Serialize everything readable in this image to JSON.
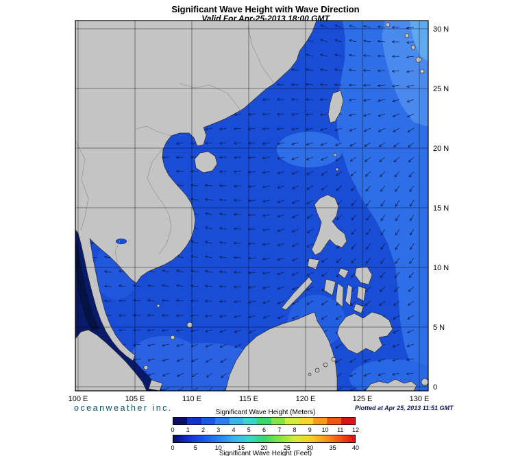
{
  "title": "Significant Wave Height with Wave Direction",
  "subtitle": "Valid For Apr-25-2013 18:00 GMT",
  "map": {
    "lon_labels": [
      "100 E",
      "105 E",
      "110 E",
      "115 E",
      "120 E",
      "125 E",
      "130 E"
    ],
    "lat_labels": [
      "30 N",
      "25 N",
      "20 N",
      "15 N",
      "10 N",
      "5 N",
      "0"
    ]
  },
  "footer": {
    "brand": "oceanweather inc.",
    "plotted": "Plotted at Apr 25, 2013 11:51 GMT"
  },
  "legend": {
    "meters_title": "Significant Wave Height (Meters)",
    "feet_title": "Significant Wave Height (Feet)",
    "meters_ticks": [
      "0",
      "1",
      "2",
      "3",
      "4",
      "5",
      "6",
      "7",
      "8",
      "9",
      "10",
      "11",
      "12"
    ],
    "feet_ticks": [
      "0",
      "5",
      "10",
      "15",
      "20",
      "25",
      "30",
      "35",
      "40"
    ],
    "colors": [
      "#0d0d62",
      "#1430cf",
      "#1b57e4",
      "#2e7fe9",
      "#3fb0e9",
      "#3fd2cb",
      "#41d36b",
      "#85e24b",
      "#d3ec3c",
      "#f7d52b",
      "#f89c1d",
      "#f1541a",
      "#d81414"
    ]
  }
}
